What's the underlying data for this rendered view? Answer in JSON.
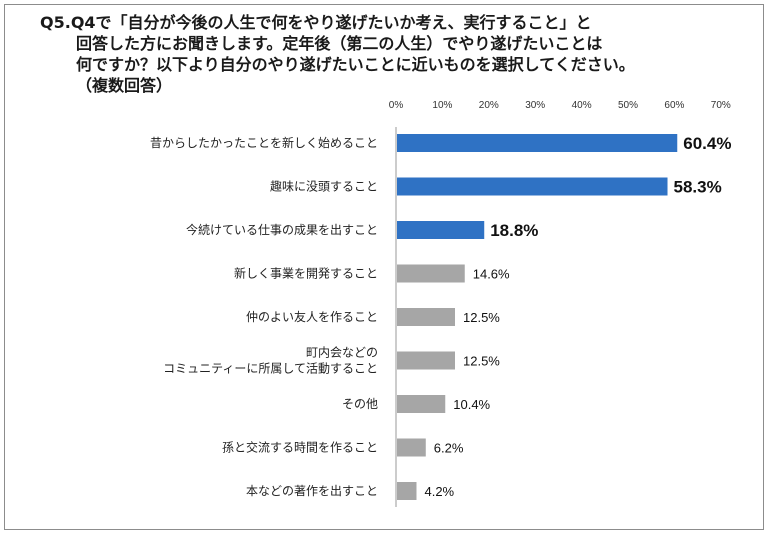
{
  "title_lines": [
    "Q5.Q4で「自分が今後の人生で何をやり遂げたいか考え、実行すること」と",
    "回答した方にお聞きします。定年後（第二の人生）でやり遂げたいことは",
    "何ですか？以下より自分のやり遂げたいことに近いものを選択してください。",
    "（複数回答）"
  ],
  "chart_data": {
    "type": "bar",
    "orientation": "horizontal",
    "xlim": [
      0,
      70
    ],
    "ticks": [
      "0%",
      "10%",
      "20%",
      "30%",
      "40%",
      "50%",
      "60%",
      "70%"
    ],
    "tick_values": [
      0,
      10,
      20,
      30,
      40,
      50,
      60,
      70
    ],
    "grid": false,
    "categories": [
      [
        "昔からしたかったことを新しく始めること"
      ],
      [
        "趣味に没頭すること"
      ],
      [
        "今続けている仕事の成果を出すこと"
      ],
      [
        "新しく事業を開発すること"
      ],
      [
        "仲のよい友人を作ること"
      ],
      [
        "町内会などの",
        "コミュニティーに所属して活動すること"
      ],
      [
        "その他"
      ],
      [
        "孫と交流する時間を作ること"
      ],
      [
        "本などの著作を出すこと"
      ]
    ],
    "values": [
      60.4,
      58.3,
      18.8,
      14.6,
      12.5,
      12.5,
      10.4,
      6.2,
      4.2
    ],
    "value_labels": [
      "60.4%",
      "58.3%",
      "18.8%",
      "14.6%",
      "12.5%",
      "12.5%",
      "10.4%",
      "6.2%",
      "4.2%"
    ],
    "highlighted": [
      true,
      true,
      true,
      false,
      false,
      false,
      false,
      false,
      false
    ],
    "colors": {
      "highlight": "#2f72c4",
      "normal": "#a6a6a6",
      "axis": "#9a9a9a"
    }
  }
}
